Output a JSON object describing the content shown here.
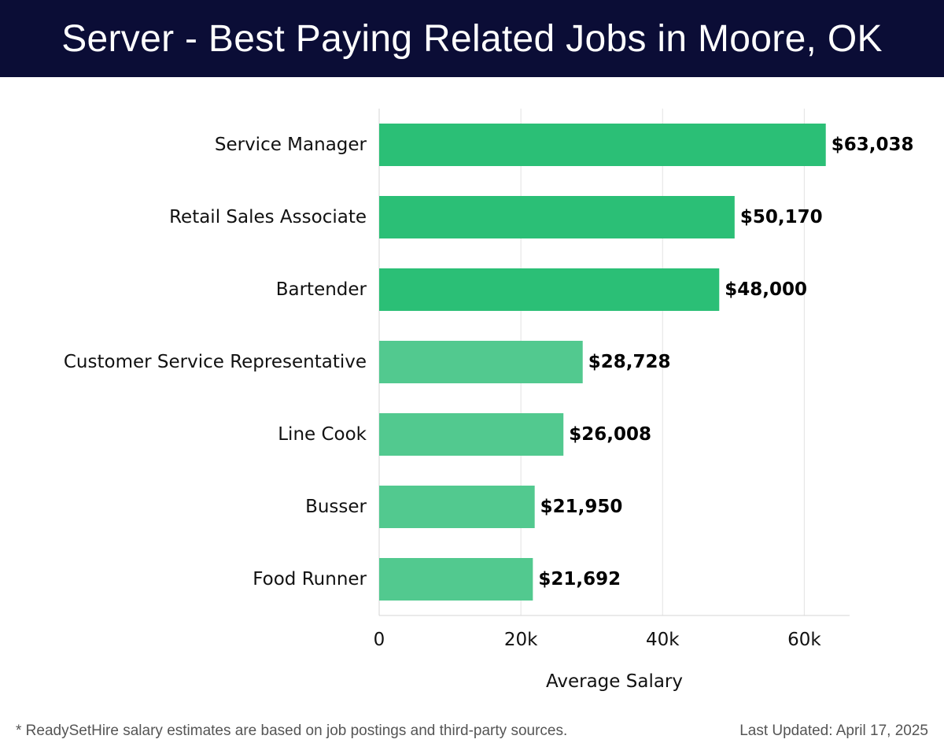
{
  "header": {
    "title": "Server - Best Paying Related Jobs in Moore, OK"
  },
  "footer": {
    "note": "* ReadySetHire salary estimates are based on job postings and third-party sources.",
    "updated": "Last Updated: April 17, 2025"
  },
  "colors": {
    "header_bg": "#0b0d36",
    "bar_dark": "#2bbf76",
    "bar_light": "#52c98f",
    "grid": "#e2e2e2"
  },
  "chart_data": {
    "type": "bar",
    "orientation": "horizontal",
    "categories": [
      "Service Manager",
      "Retail Sales Associate",
      "Bartender",
      "Customer Service Representative",
      "Line Cook",
      "Busser",
      "Food Runner"
    ],
    "values": [
      63038,
      50170,
      48000,
      28728,
      26008,
      21950,
      21692
    ],
    "value_labels": [
      "$63,038",
      "$50,170",
      "$48,000",
      "$28,728",
      "$26,008",
      "$21,950",
      "$21,692"
    ],
    "xlabel": "Average Salary",
    "xlim": [
      0,
      66400
    ],
    "xticks": [
      0,
      20000,
      40000,
      60000
    ],
    "xtick_labels": [
      "0",
      "20k",
      "40k",
      "60k"
    ],
    "grid": true
  }
}
